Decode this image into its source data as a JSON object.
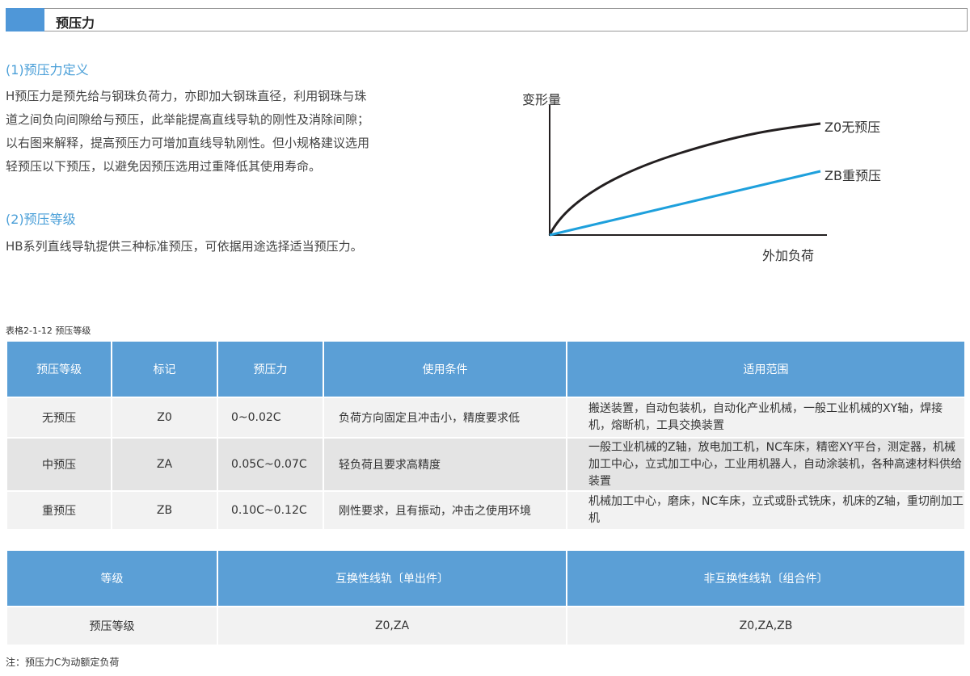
{
  "header": {
    "title": "预压力"
  },
  "section1": {
    "heading": "(1)预压力定义",
    "lines": [
      "H预压力是预先给与钢珠负荷力，亦即加大钢珠直径，利用钢珠与珠",
      "道之间负向间隙给与预压，此举能提高直线导轨的刚性及消除间隙；",
      "以右图来解释，提高预压力可增加直线导轨刚性。但小规格建议选用",
      "轻预压以下预压，以避免因预压选用过重降低其使用寿命。"
    ]
  },
  "section2": {
    "heading": "(2)预压等级",
    "text": "HB系列直线导轨提供三种标准预压，可依据用途选择适当预压力。"
  },
  "diagram": {
    "y_label": "变形量",
    "x_label": "外加负荷",
    "curve_z0": "Z0无预压",
    "line_zb": "ZB重预压",
    "colors": {
      "z0": "#231f20",
      "zb": "#1ea0dc"
    }
  },
  "table1": {
    "caption": "表格2-1-12  预压等级",
    "headers": [
      "预压等级",
      "标记",
      "预压力",
      "使用条件",
      "适用范围"
    ],
    "rows": [
      [
        "无预压",
        "Z0",
        "0~0.02C",
        "负荷方向固定且冲击小，精度要求低",
        "搬送装置，自动包装机，自动化产业机械，一般工业机械的XY轴，焊接机，熔断机，工具交换装置"
      ],
      [
        "中预压",
        "ZA",
        "0.05C~0.07C",
        "轻负荷且要求高精度",
        "一般工业机械的Z轴，放电加工机，NC车床，精密XY平台，测定器，机械加工中心，立式加工中心，工业用机器人，自动涂装机，各种高速材料供给装置"
      ],
      [
        "重预压",
        "ZB",
        "0.10C~0.12C",
        "刚性要求，且有振动，冲击之使用环境",
        "机械加工中心，磨床，NC车床，立式或卧式铣床，机床的Z轴，重切削加工机"
      ]
    ]
  },
  "table2": {
    "headers": [
      "等级",
      "互换性线轨〔单出件〕",
      "非互换性线轨〔组合件〕"
    ],
    "row": [
      "预压等级",
      "Z0,ZA",
      "Z0,ZA,ZB"
    ]
  },
  "note": "注：预压力C为动额定负荷",
  "colors": {
    "accent": "#4f97d8",
    "table_header": "#5b9fd6"
  }
}
